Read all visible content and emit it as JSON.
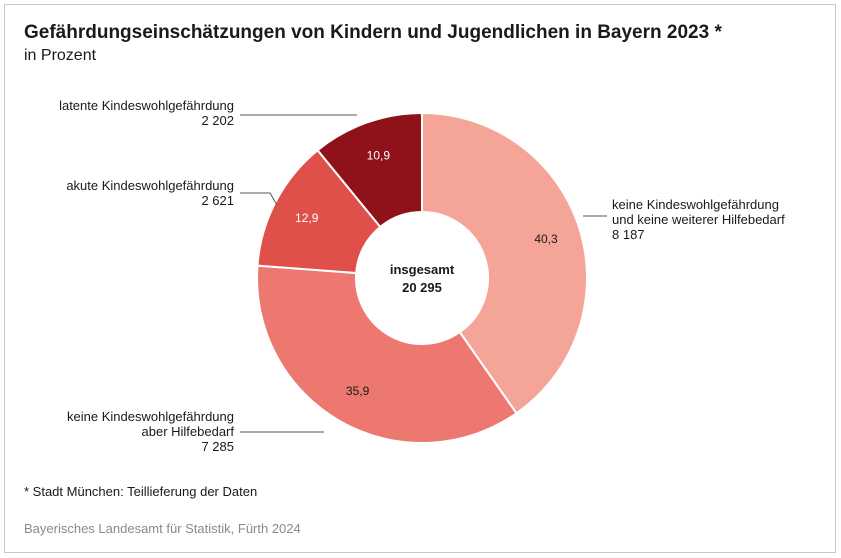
{
  "header": {
    "title": "Gefährdungseinschätzungen von Kindern und Jugendlichen in Bayern 2023",
    "title_mark": "*",
    "subtitle": "in Prozent"
  },
  "chart_data": {
    "type": "pie",
    "title": "Gefährdungseinschätzungen von Kindern und Jugendlichen in Bayern 2023 *",
    "subtitle": "in Prozent",
    "center_label": "insgesamt",
    "center_value": "20 295",
    "slices": [
      {
        "label_lines": [
          "keine Kindeswohlgefährdung",
          "und keine weiterer Hilfebedarf"
        ],
        "count": "8 187",
        "percent": 40.3,
        "percent_text": "40,3",
        "color": "#f4a598",
        "percent_color": "#1a1a1a"
      },
      {
        "label_lines": [
          "keine Kindeswohlgefährdung",
          "aber Hilfebedarf"
        ],
        "count": "7 285",
        "percent": 35.9,
        "percent_text": "35,9",
        "color": "#ec7870",
        "percent_color": "#1a1a1a"
      },
      {
        "label_lines": [
          "akute Kindeswohlgefährdung"
        ],
        "count": "2 621",
        "percent": 12.9,
        "percent_text": "12,9",
        "color": "#e0504a",
        "percent_color": "#ffffff"
      },
      {
        "label_lines": [
          "latente Kindeswohlgefährdung"
        ],
        "count": "2 202",
        "percent": 10.9,
        "percent_text": "10,9",
        "color": "#8f111a",
        "percent_color": "#ffffff"
      }
    ]
  },
  "footer": {
    "footnote": "*  Stadt München: Teillieferung der Daten",
    "source": "Bayerisches Landesamt für Statistik, Fürth 2024"
  }
}
